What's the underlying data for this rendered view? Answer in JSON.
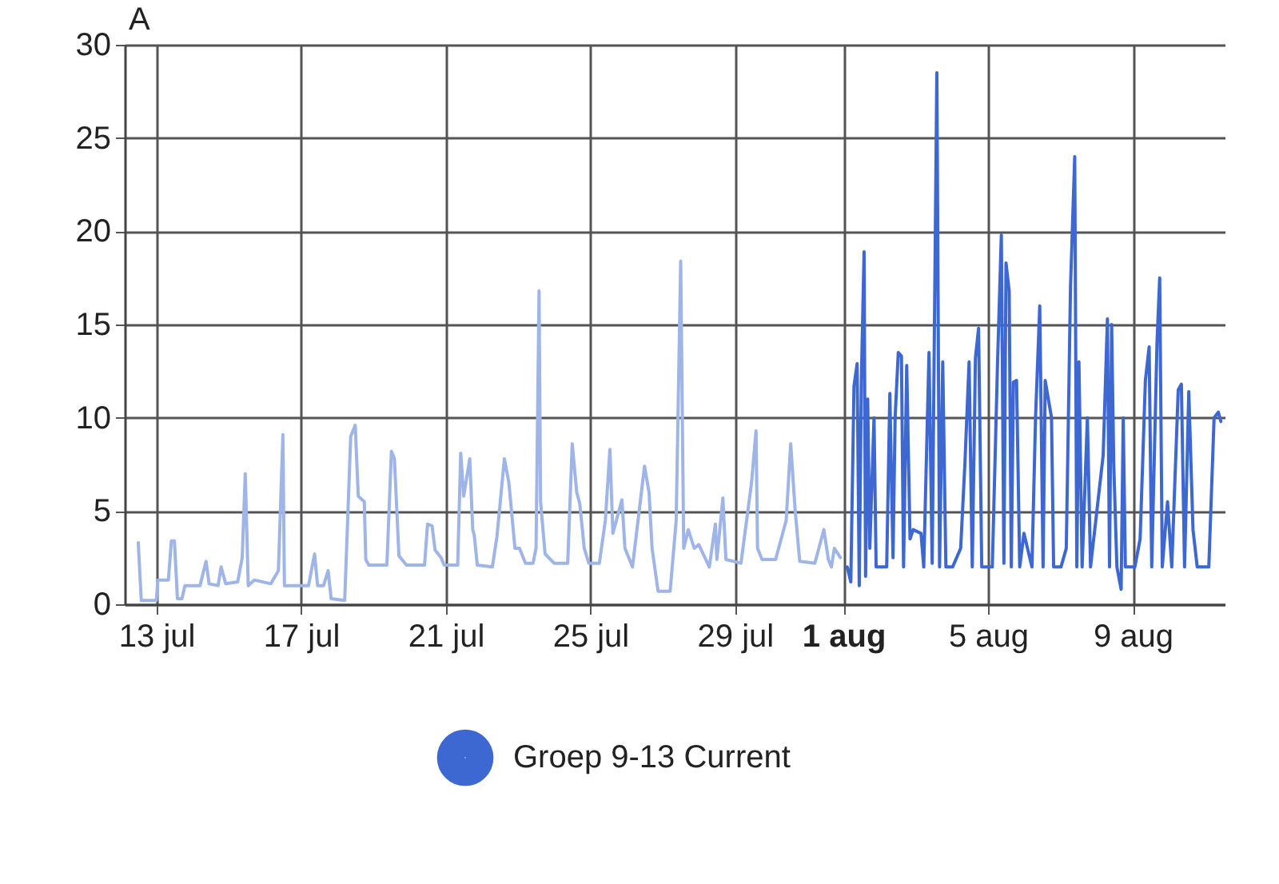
{
  "chart_data": {
    "type": "line",
    "ylabel": "A",
    "xlim": [
      "--07-12T03:00",
      "--08-11T13:00"
    ],
    "xticks": [
      {
        "value": "--07-13",
        "label": "13 jul"
      },
      {
        "value": "--07-17",
        "label": "17 jul"
      },
      {
        "value": "--07-21",
        "label": "21 jul"
      },
      {
        "value": "--07-25",
        "label": "25 jul"
      },
      {
        "value": "--07-29",
        "label": "29 jul"
      },
      {
        "value": "--08-01",
        "label": "1 aug"
      },
      {
        "value": "--08-05",
        "label": "5 aug"
      },
      {
        "value": "--08-09",
        "label": "9 aug"
      }
    ],
    "ylim": [
      0,
      30
    ],
    "yticks": [
      0,
      5,
      10,
      15,
      20,
      25,
      30
    ],
    "grid": true,
    "legend": "bottom",
    "marker": "none",
    "line_style": "solid",
    "series": [
      {
        "color": "#9fb5e8",
        "x": [
          "--07-12T12:00",
          "--07-12T14:00",
          "--07-13T00:00",
          "--07-13T01:00",
          "--07-13T08:00",
          "--07-13T10:00",
          "--07-13T12:00",
          "--07-13T14:00",
          "--07-13T17:00",
          "--07-13T19:00",
          "--07-14T05:00",
          "--07-14T09:00",
          "--07-14T11:00",
          "--07-14T17:00",
          "--07-14T19:00",
          "--07-14T22:00",
          "--07-15T06:00",
          "--07-15T09:00",
          "--07-15T11:00",
          "--07-15T13:00",
          "--07-15T17:00",
          "--07-16T04:00",
          "--07-16T09:00",
          "--07-16T12:00",
          "--07-16T13:00",
          "--07-17T05:00",
          "--07-17T09:00",
          "--07-17T11:00",
          "--07-17T15:00",
          "--07-17T18:00",
          "--07-17T20:00",
          "--07-18T05:00",
          "--07-18T09:00",
          "--07-18T12:00",
          "--07-18T14:00",
          "--07-18T18:00",
          "--07-18T19:00",
          "--07-18T21:00",
          "--07-19T09:00",
          "--07-19T12:00",
          "--07-19T14:00",
          "--07-19T17:00",
          "--07-19T22:00",
          "--07-20T10:00",
          "--07-20T12:00",
          "--07-20T15:00",
          "--07-20T17:00",
          "--07-20T21:00",
          "--07-20T23:00",
          "--07-21T08:00",
          "--07-21T10:00",
          "--07-21T12:00",
          "--07-21T16:00",
          "--07-21T18:00",
          "--07-21T19:00",
          "--07-21T21:00",
          "--07-22T07:00",
          "--07-22T10:00",
          "--07-22T15:00",
          "--07-22T18:00",
          "--07-22T22:00",
          "--07-23T01:00",
          "--07-23T05:00",
          "--07-23T10:00",
          "--07-23T12:00",
          "--07-23T14:00",
          "--07-23T15:00",
          "--07-23T18:00",
          "--07-24T00:00",
          "--07-24T09:00",
          "--07-24T12:00",
          "--07-24T15:00",
          "--07-24T17:00",
          "--07-24T20:00",
          "--07-24T23:00",
          "--07-25T06:00",
          "--07-25T10:00",
          "--07-25T13:00",
          "--07-25T15:00",
          "--07-25T21:00",
          "--07-25T23:00",
          "--07-26T04:00",
          "--07-26T12:00",
          "--07-26T15:00",
          "--07-26T17:00",
          "--07-26T21:00",
          "--07-27T05:00",
          "--07-27T09:00",
          "--07-27T12:00",
          "--07-27T14:00",
          "--07-27T17:00",
          "--07-27T21:00",
          "--07-28T00:00",
          "--07-28T07:00",
          "--07-28T11:00",
          "--07-28T12:00",
          "--07-28T16:00",
          "--07-28T18:00",
          "--07-29T04:00",
          "--07-29T11:00",
          "--07-29T14:00",
          "--07-29T15:00",
          "--07-29T18:00",
          "--07-30T03:00",
          "--07-30T10:00",
          "--07-30T13:00",
          "--07-30T16:00",
          "--07-30T19:00",
          "--07-31T05:00",
          "--07-31T11:00",
          "--07-31T14:00",
          "--07-31T16:00",
          "--07-31T18:00",
          "--07-31T22:00"
        ],
        "values": [
          3.3,
          0.2,
          0.2,
          1.3,
          1.3,
          3.4,
          3.4,
          0.3,
          0.3,
          1.0,
          1.0,
          2.3,
          1.1,
          1.0,
          2.0,
          1.1,
          1.2,
          2.5,
          7.0,
          1.0,
          1.3,
          1.1,
          1.8,
          9.1,
          1.0,
          1.0,
          2.7,
          1.0,
          1.0,
          1.8,
          0.3,
          0.2,
          9.0,
          9.6,
          5.8,
          5.5,
          2.4,
          2.1,
          2.1,
          8.2,
          7.8,
          2.6,
          2.1,
          2.1,
          4.3,
          4.2,
          2.9,
          2.5,
          2.1,
          2.1,
          8.1,
          5.8,
          7.8,
          4.0,
          3.7,
          2.1,
          2.0,
          3.6,
          7.8,
          6.5,
          3.0,
          3.0,
          2.2,
          2.2,
          3.0,
          16.8,
          5.5,
          2.7,
          2.2,
          2.2,
          8.6,
          6.0,
          5.4,
          3.0,
          2.2,
          2.2,
          4.5,
          8.3,
          3.8,
          5.6,
          3.0,
          2.0,
          7.4,
          6.0,
          3.0,
          0.7,
          0.7,
          4.5,
          18.4,
          3.0,
          4.0,
          3.0,
          3.2,
          2.0,
          4.3,
          2.4,
          5.7,
          2.4,
          2.2,
          6.5,
          9.3,
          3.0,
          2.4,
          2.4,
          4.5,
          8.6,
          5.0,
          2.3,
          2.2,
          4.0,
          2.4,
          2.0,
          3.0,
          2.5
        ]
      },
      {
        "name": "Groep 9-13 Current",
        "color": "#3e68d1",
        "x": [
          "--08-01T02:30",
          "--08-01T04:54",
          "--08-01T07:00",
          "--08-01T09:06",
          "--08-01T10:30",
          "--08-01T11:54",
          "--08-01T13:42",
          "--08-01T14:42",
          "--08-01T16:06",
          "--08-01T17:30",
          "--08-01T20:18",
          "--08-01T21:42",
          "--08-02T04:42",
          "--08-02T06:48",
          "--08-02T08:54",
          "--08-02T10:18",
          "--08-02T12:24",
          "--08-02T14:30",
          "--08-02T15:54",
          "--08-02T18:00",
          "--08-02T20:12",
          "--08-02T22:18",
          "--08-03T03:30",
          "--08-03T05:18",
          "--08-03T08:48",
          "--08-03T10:54",
          "--08-03T14:00",
          "--08-03T15:48",
          "--08-03T17:54",
          "--08-03T20:00",
          "--08-04T00:30",
          "--08-04T05:48",
          "--08-04T08:36",
          "--08-04T11:24",
          "--08-04T13:30",
          "--08-04T15:36",
          "--08-04T17:42",
          "--08-04T19:48",
          "--08-05T02:48",
          "--08-05T06:18",
          "--08-05T08:48",
          "--08-05T10:30",
          "--08-05T11:54",
          "--08-05T14:00",
          "--08-05T15:24",
          "--08-05T16:48",
          "--08-05T18:54",
          "--08-05T21:00",
          "--08-05T23:48",
          "--08-06T05:06",
          "--08-06T07:30",
          "--08-06T10:18",
          "--08-06T12:30",
          "--08-06T13:54",
          "--08-06T16:00",
          "--08-06T18:06",
          "--08-06T19:30",
          "--08-07T00:24",
          "--08-07T03:54",
          "--08-07T06:42",
          "--08-07T09:30",
          "--08-07T10:54",
          "--08-07T12:18",
          "--08-07T14:24",
          "--08-07T17:54",
          "--08-07T20:00",
          "--08-08T04:24",
          "--08-08T07:12",
          "--08-08T08:36",
          "--08-08T10:00",
          "--08-08T11:24",
          "--08-08T13:30",
          "--08-08T16:18",
          "--08-08T17:42",
          "--08-08T19:06",
          "--08-09T01:24",
          "--08-09T04:54",
          "--08-09T08:24",
          "--08-09T10:54",
          "--08-09T12:36",
          "--08-09T16:06",
          "--08-09T17:54",
          "--08-09T19:36",
          "--08-09T23:06",
          "--08-10T01:54",
          "--08-10T06:12",
          "--08-10T08:18",
          "--08-10T10:24",
          "--08-10T13:12",
          "--08-10T16:00",
          "--08-10T18:48",
          "--08-11T02:30",
          "--08-11T06:00",
          "--08-11T08:48",
          "--08-11T10:30"
        ],
        "values": [
          2.0,
          1.2,
          11.7,
          12.9,
          1.0,
          12.0,
          18.9,
          1.5,
          11.0,
          3.0,
          10.0,
          2.0,
          2.0,
          11.3,
          2.5,
          10.0,
          13.5,
          13.3,
          2.0,
          12.8,
          3.5,
          4.0,
          3.8,
          2.0,
          13.5,
          2.2,
          28.5,
          2.0,
          13.0,
          2.0,
          2.0,
          3.0,
          7.5,
          13.0,
          2.0,
          13.2,
          14.8,
          2.0,
          2.0,
          13.0,
          19.8,
          2.2,
          18.3,
          16.8,
          2.0,
          11.9,
          12.0,
          2.0,
          3.8,
          2.0,
          10.0,
          16.0,
          2.0,
          12.0,
          11.0,
          10.0,
          2.0,
          2.0,
          3.0,
          17.0,
          24.0,
          2.0,
          13.0,
          2.0,
          10.0,
          2.0,
          8.0,
          15.3,
          2.0,
          15.0,
          7.5,
          2.0,
          0.8,
          10.0,
          2.0,
          2.0,
          3.5,
          12.0,
          13.8,
          2.0,
          14.0,
          17.5,
          2.0,
          5.5,
          2.0,
          11.5,
          11.8,
          2.0,
          11.4,
          4.0,
          2.0,
          2.0,
          10.0,
          10.3,
          9.8
        ]
      }
    ]
  }
}
